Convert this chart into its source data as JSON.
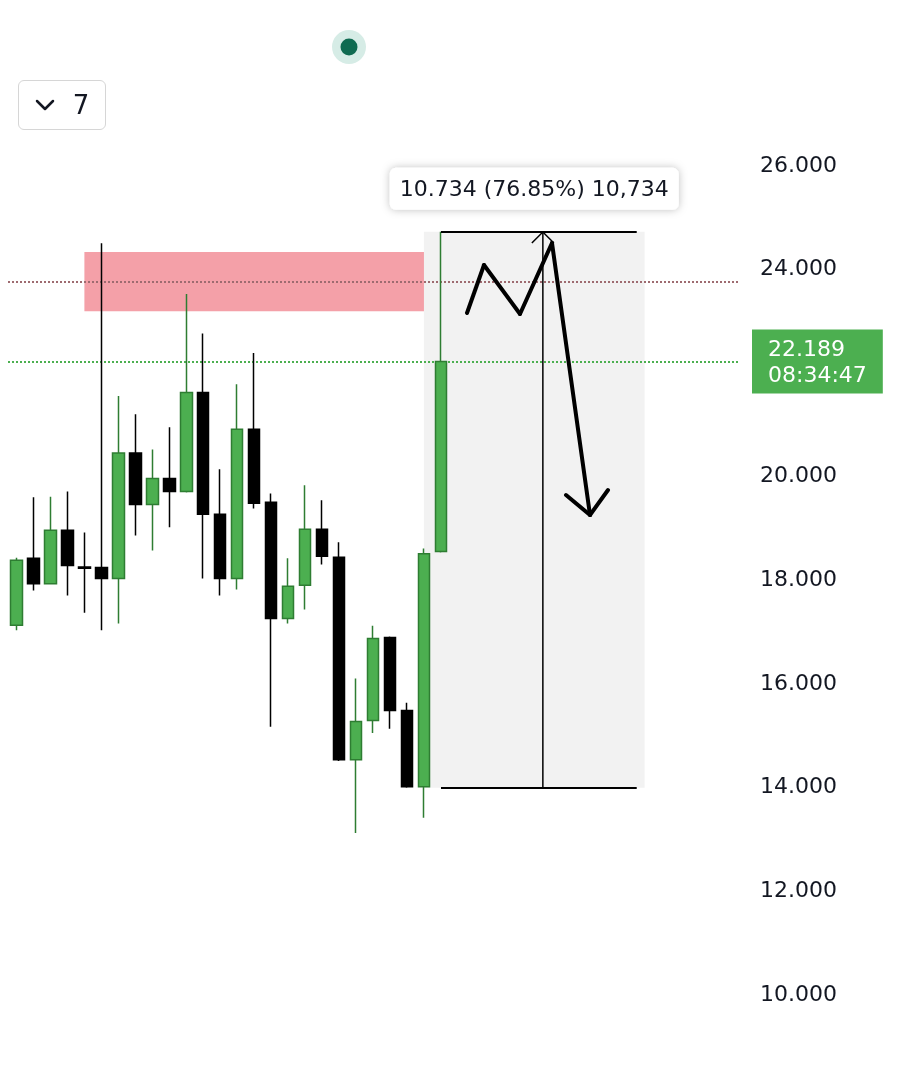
{
  "chart_data": {
    "type": "candlestick",
    "categories": [
      null,
      null,
      null,
      null,
      null,
      null,
      null,
      null,
      null,
      null,
      null,
      null,
      null,
      null,
      null,
      null,
      null,
      null,
      null,
      null,
      null,
      null,
      null,
      null,
      null,
      null,
      null,
      null,
      null,
      null,
      null,
      null,
      null,
      null,
      null,
      null,
      null,
      null,
      null,
      null,
      null,
      null,
      null
    ],
    "ohlc": [
      [
        17.1,
        18.4,
        17.0,
        18.35
      ],
      [
        18.39,
        19.57,
        17.77,
        17.9
      ],
      [
        17.9,
        19.58,
        17.9,
        18.93
      ],
      [
        18.93,
        19.68,
        17.67,
        18.25
      ],
      [
        18.22,
        18.89,
        17.34,
        18.2
      ],
      [
        18.21,
        24.47,
        17.0,
        18.0
      ],
      [
        18.0,
        21.52,
        17.13,
        20.42
      ],
      [
        20.42,
        21.17,
        18.83,
        19.43
      ],
      [
        19.43,
        20.49,
        18.54,
        19.93
      ],
      [
        19.93,
        20.92,
        18.99,
        19.68
      ],
      [
        19.68,
        23.49,
        19.66,
        21.59
      ],
      [
        21.59,
        22.73,
        18.0,
        19.24
      ],
      [
        19.24,
        20.11,
        17.67,
        18.0
      ],
      [
        18.0,
        21.75,
        17.79,
        20.88
      ],
      [
        20.88,
        22.35,
        19.35,
        19.45
      ],
      [
        19.47,
        19.64,
        15.14,
        17.23
      ],
      [
        17.23,
        18.39,
        17.13,
        17.85
      ],
      [
        17.87,
        19.8,
        17.4,
        18.95
      ],
      [
        18.95,
        19.51,
        18.27,
        18.43
      ],
      [
        18.41,
        18.7,
        14.48,
        14.5
      ],
      [
        14.5,
        16.07,
        13.09,
        15.24
      ],
      [
        15.26,
        17.09,
        15.02,
        16.84
      ],
      [
        16.86,
        16.88,
        15.1,
        15.45
      ],
      [
        15.45,
        15.6,
        13.96,
        13.98
      ],
      [
        13.98,
        18.58,
        13.38,
        18.48
      ],
      [
        18.52,
        24.69,
        18.5,
        22.189
      ],
      null,
      null,
      null,
      null,
      null,
      null,
      null,
      null,
      null,
      null,
      null,
      null,
      null,
      null,
      null,
      null,
      null
    ],
    "ylim": [
      10,
      26
    ],
    "yticks": [
      {
        "value": 10,
        "label": "10.000"
      },
      {
        "value": 12,
        "label": "12.000"
      },
      {
        "value": 14,
        "label": "14.000"
      },
      {
        "value": 16,
        "label": "16.000"
      },
      {
        "value": 18,
        "label": "18.000"
      },
      {
        "value": 20,
        "label": "20.000"
      },
      {
        "value": 24,
        "label": "24.000"
      },
      {
        "value": 26,
        "label": "26.000"
      }
    ],
    "grid": false,
    "ref_lines": [
      {
        "axis": "y",
        "value": 22.189,
        "label": "22.189",
        "color": "#4caf50",
        "line_style": "dotted"
      },
      {
        "axis": "y",
        "value": 23.72,
        "color": "#9e6b70",
        "line_style": "dotted"
      }
    ],
    "bands": [
      {
        "axis": "y",
        "from": 23.16,
        "to": 24.3,
        "color": "#f4a0a8"
      },
      {
        "axis": "y",
        "from": 13.96,
        "to": 24.69,
        "label": "10.734 (76.85%) 10,734",
        "color": "#f2f2f2"
      }
    ],
    "annotations": [
      "7",
      "08:34:47"
    ]
  }
}
